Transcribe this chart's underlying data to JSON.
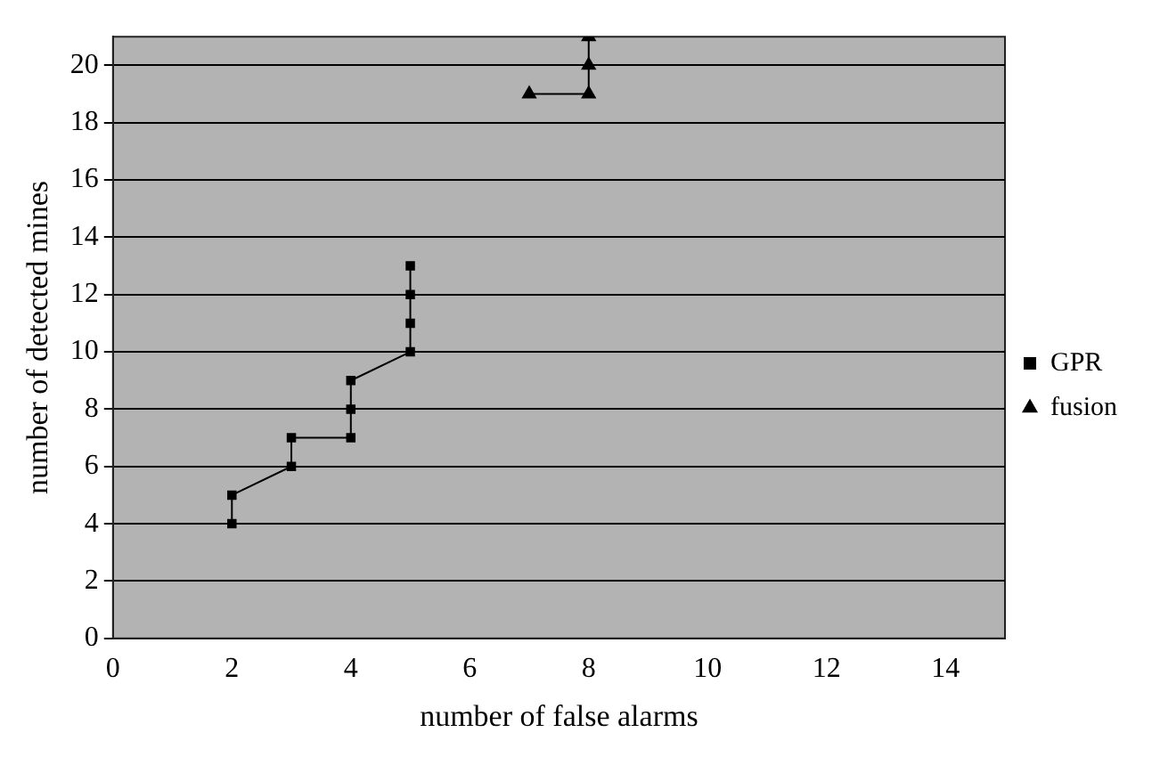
{
  "chart_data": {
    "type": "line",
    "xlabel": "number of false alarms",
    "ylabel": "number of detected mines",
    "series": [
      {
        "name": "GPR",
        "color": "#000000",
        "marker": "square",
        "x": [
          2,
          2,
          3,
          3,
          4,
          4,
          4,
          5,
          5,
          5,
          5
        ],
        "values": [
          4,
          5,
          6,
          7,
          7,
          8,
          9,
          10,
          11,
          12,
          13
        ]
      },
      {
        "name": "fusion",
        "color": "#000000",
        "marker": "triangle",
        "x": [
          7,
          8,
          8,
          8
        ],
        "values": [
          19,
          19,
          20,
          21
        ]
      }
    ],
    "xlim": [
      0,
      15
    ],
    "xticks": [
      0,
      2,
      4,
      6,
      8,
      10,
      12,
      14
    ],
    "ylim": [
      0,
      21
    ],
    "yticks": [
      0,
      2,
      4,
      6,
      8,
      10,
      12,
      14,
      16,
      18,
      20
    ],
    "grid": "y",
    "legend": "right",
    "line_style": "solid"
  }
}
